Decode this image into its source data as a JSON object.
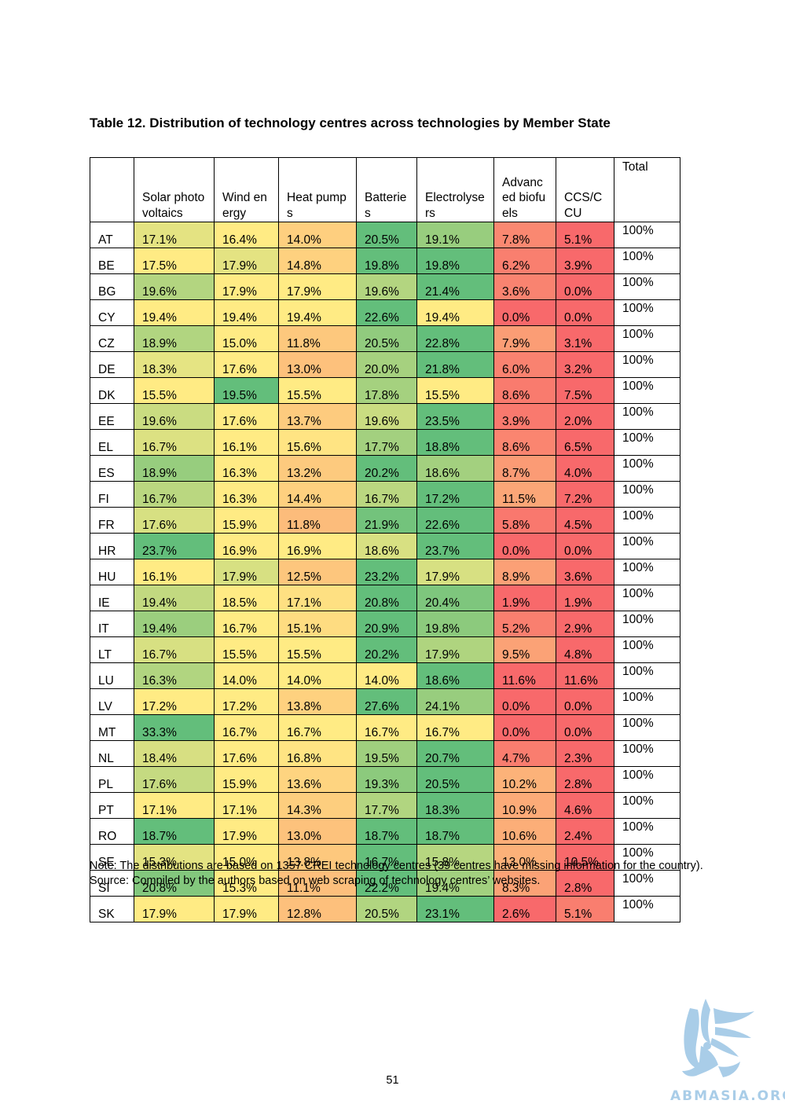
{
  "title": "Table 12. Distribution of technology centres across technologies by Member State",
  "table": {
    "headers": [
      "",
      "Solar photovoltaics",
      "Wind energy",
      "Heat pumps",
      "Batteries",
      "Electrolysers",
      "Advanced biofuels",
      "CCS/CCU",
      "Total"
    ],
    "rows": [
      {
        "country": "AT",
        "values": [
          "17.1%",
          "16.4%",
          "14.0%",
          "20.5%",
          "19.1%",
          "7.8%",
          "5.1%"
        ],
        "total": "100%"
      },
      {
        "country": "BE",
        "values": [
          "17.5%",
          "17.9%",
          "14.8%",
          "19.8%",
          "19.8%",
          "6.2%",
          "3.9%"
        ],
        "total": "100%"
      },
      {
        "country": "BG",
        "values": [
          "19.6%",
          "17.9%",
          "17.9%",
          "19.6%",
          "21.4%",
          "3.6%",
          "0.0%"
        ],
        "total": "100%"
      },
      {
        "country": "CY",
        "values": [
          "19.4%",
          "19.4%",
          "19.4%",
          "22.6%",
          "19.4%",
          "0.0%",
          "0.0%"
        ],
        "total": "100%"
      },
      {
        "country": "CZ",
        "values": [
          "18.9%",
          "15.0%",
          "11.8%",
          "20.5%",
          "22.8%",
          "7.9%",
          "3.1%"
        ],
        "total": "100%"
      },
      {
        "country": "DE",
        "values": [
          "18.3%",
          "17.6%",
          "13.0%",
          "20.0%",
          "21.8%",
          "6.0%",
          "3.2%"
        ],
        "total": "100%"
      },
      {
        "country": "DK",
        "values": [
          "15.5%",
          "19.5%",
          "15.5%",
          "17.8%",
          "15.5%",
          "8.6%",
          "7.5%"
        ],
        "total": "100%"
      },
      {
        "country": "EE",
        "values": [
          "19.6%",
          "17.6%",
          "13.7%",
          "19.6%",
          "23.5%",
          "3.9%",
          "2.0%"
        ],
        "total": "100%"
      },
      {
        "country": "EL",
        "values": [
          "16.7%",
          "16.1%",
          "15.6%",
          "17.7%",
          "18.8%",
          "8.6%",
          "6.5%"
        ],
        "total": "100%"
      },
      {
        "country": "ES",
        "values": [
          "18.9%",
          "16.3%",
          "13.2%",
          "20.2%",
          "18.6%",
          "8.7%",
          "4.0%"
        ],
        "total": "100%"
      },
      {
        "country": "FI",
        "values": [
          "16.7%",
          "16.3%",
          "14.4%",
          "16.7%",
          "17.2%",
          "11.5%",
          "7.2%"
        ],
        "total": "100%"
      },
      {
        "country": "FR",
        "values": [
          "17.6%",
          "15.9%",
          "11.8%",
          "21.9%",
          "22.6%",
          "5.8%",
          "4.5%"
        ],
        "total": "100%"
      },
      {
        "country": "HR",
        "values": [
          "23.7%",
          "16.9%",
          "16.9%",
          "18.6%",
          "23.7%",
          "0.0%",
          "0.0%"
        ],
        "total": "100%"
      },
      {
        "country": "HU",
        "values": [
          "16.1%",
          "17.9%",
          "12.5%",
          "23.2%",
          "17.9%",
          "8.9%",
          "3.6%"
        ],
        "total": "100%"
      },
      {
        "country": "IE",
        "values": [
          "19.4%",
          "18.5%",
          "17.1%",
          "20.8%",
          "20.4%",
          "1.9%",
          "1.9%"
        ],
        "total": "100%"
      },
      {
        "country": "IT",
        "values": [
          "19.4%",
          "16.7%",
          "15.1%",
          "20.9%",
          "19.8%",
          "5.2%",
          "2.9%"
        ],
        "total": "100%"
      },
      {
        "country": "LT",
        "values": [
          "16.7%",
          "15.5%",
          "15.5%",
          "20.2%",
          "17.9%",
          "9.5%",
          "4.8%"
        ],
        "total": "100%"
      },
      {
        "country": "LU",
        "values": [
          "16.3%",
          "14.0%",
          "14.0%",
          "14.0%",
          "18.6%",
          "11.6%",
          "11.6%"
        ],
        "total": "100%"
      },
      {
        "country": "LV",
        "values": [
          "17.2%",
          "17.2%",
          "13.8%",
          "27.6%",
          "24.1%",
          "0.0%",
          "0.0%"
        ],
        "total": "100%"
      },
      {
        "country": "MT",
        "values": [
          "33.3%",
          "16.7%",
          "16.7%",
          "16.7%",
          "16.7%",
          "0.0%",
          "0.0%"
        ],
        "total": "100%"
      },
      {
        "country": "NL",
        "values": [
          "18.4%",
          "17.6%",
          "16.8%",
          "19.5%",
          "20.7%",
          "4.7%",
          "2.3%"
        ],
        "total": "100%"
      },
      {
        "country": "PL",
        "values": [
          "17.6%",
          "15.9%",
          "13.6%",
          "19.3%",
          "20.5%",
          "10.2%",
          "2.8%"
        ],
        "total": "100%"
      },
      {
        "country": "PT",
        "values": [
          "17.1%",
          "17.1%",
          "14.3%",
          "17.7%",
          "18.3%",
          "10.9%",
          "4.6%"
        ],
        "total": "100%"
      },
      {
        "country": "RO",
        "values": [
          "18.7%",
          "17.9%",
          "13.0%",
          "18.7%",
          "18.7%",
          "10.6%",
          "2.4%"
        ],
        "total": "100%"
      },
      {
        "country": "SE",
        "values": [
          "15.3%",
          "15.0%",
          "13.8%",
          "16.7%",
          "15.8%",
          "13.0%",
          "10.5%"
        ],
        "total": "100%"
      },
      {
        "country": "SI",
        "values": [
          "20.8%",
          "15.3%",
          "11.1%",
          "22.2%",
          "19.4%",
          "8.3%",
          "2.8%"
        ],
        "total": "100%"
      },
      {
        "country": "SK",
        "values": [
          "17.9%",
          "17.9%",
          "12.8%",
          "20.5%",
          "23.1%",
          "2.6%",
          "5.1%"
        ],
        "total": "100%"
      }
    ]
  },
  "heatmap_colors": {
    "low": "#f8696b",
    "mid": "#ffeb84",
    "high": "#63be7b"
  },
  "note": "Note: The distributions are based on 1357 CREI technology centres (39 centres have missing information for the country).",
  "source": "Source: Compiled by the authors based on web scraping of technology centres’ websites.",
  "page_number": "51",
  "watermark": "ABMASIA.ORG",
  "logo_icon": "griffin-logo-icon"
}
